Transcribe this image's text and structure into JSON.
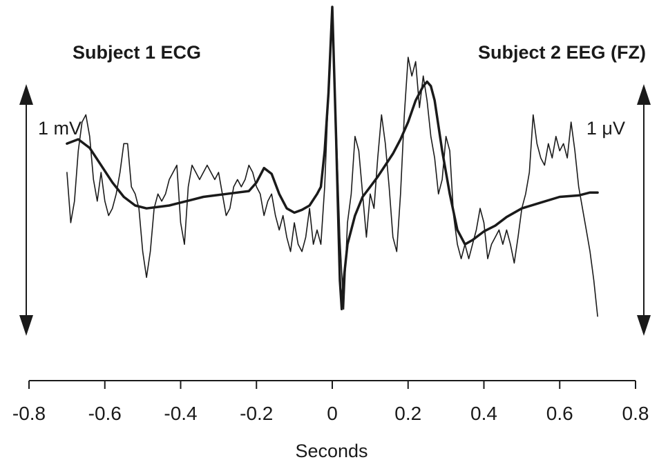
{
  "chart_data": {
    "type": "line",
    "title_left": "Subject 1 ECG",
    "title_right": "Subject 2 EEG (FZ)",
    "scale_left": "1 mV",
    "scale_right": "1 μV",
    "xlabel": "Seconds",
    "xlim": [
      -0.8,
      0.8
    ],
    "ylim": [
      -1.2,
      1.1
    ],
    "xticks": [
      -0.8,
      -0.6,
      -0.4,
      -0.2,
      0,
      0.2,
      0.4,
      0.6,
      0.8
    ],
    "xtick_labels": [
      "-0.8",
      "-0.6",
      "-0.4",
      "-0.2",
      "0",
      "0.2",
      "0.4",
      "0.6",
      "0.8"
    ],
    "grid": false,
    "series": [
      {
        "style": "thin",
        "x": [
          -0.7,
          -0.69,
          -0.68,
          -0.67,
          -0.66,
          -0.65,
          -0.64,
          -0.63,
          -0.62,
          -0.61,
          -0.6,
          -0.59,
          -0.58,
          -0.57,
          -0.56,
          -0.55,
          -0.54,
          -0.53,
          -0.52,
          -0.51,
          -0.5,
          -0.49,
          -0.48,
          -0.47,
          -0.46,
          -0.45,
          -0.44,
          -0.43,
          -0.42,
          -0.41,
          -0.4,
          -0.39,
          -0.38,
          -0.37,
          -0.36,
          -0.35,
          -0.34,
          -0.33,
          -0.32,
          -0.31,
          -0.3,
          -0.29,
          -0.28,
          -0.27,
          -0.26,
          -0.25,
          -0.24,
          -0.23,
          -0.22,
          -0.21,
          -0.2,
          -0.19,
          -0.18,
          -0.17,
          -0.16,
          -0.15,
          -0.14,
          -0.13,
          -0.12,
          -0.11,
          -0.1,
          -0.09,
          -0.08,
          -0.07,
          -0.06,
          -0.05,
          -0.04,
          -0.03,
          -0.02,
          -0.01,
          0,
          0.01,
          0.02,
          0.03,
          0.04,
          0.05,
          0.06,
          0.07,
          0.08,
          0.09,
          0.1,
          0.11,
          0.12,
          0.13,
          0.14,
          0.15,
          0.16,
          0.17,
          0.18,
          0.19,
          0.2,
          0.21,
          0.22,
          0.23,
          0.24,
          0.25,
          0.26,
          0.27,
          0.28,
          0.29,
          0.3,
          0.31,
          0.32,
          0.33,
          0.34,
          0.35,
          0.36,
          0.37,
          0.38,
          0.39,
          0.4,
          0.41,
          0.42,
          0.43,
          0.44,
          0.45,
          0.46,
          0.47,
          0.48,
          0.49,
          0.5,
          0.51,
          0.52,
          0.53,
          0.54,
          0.55,
          0.56,
          0.57,
          0.58,
          0.59,
          0.6,
          0.61,
          0.62,
          0.63,
          0.64,
          0.65,
          0.66,
          0.67,
          0.68,
          0.69,
          0.7
        ],
        "y": [
          -0.05,
          -0.4,
          -0.25,
          0.1,
          0.3,
          0.35,
          0.2,
          -0.1,
          -0.25,
          -0.05,
          -0.25,
          -0.35,
          -0.3,
          -0.2,
          -0.05,
          0.15,
          0.15,
          -0.15,
          -0.2,
          -0.3,
          -0.6,
          -0.78,
          -0.6,
          -0.3,
          -0.2,
          -0.25,
          -0.2,
          -0.1,
          -0.05,
          0.0,
          -0.4,
          -0.55,
          -0.15,
          0.0,
          -0.05,
          -0.1,
          -0.05,
          0.0,
          -0.05,
          -0.1,
          -0.05,
          -0.2,
          -0.35,
          -0.3,
          -0.15,
          -0.1,
          -0.15,
          -0.1,
          0.0,
          -0.05,
          -0.15,
          -0.2,
          -0.35,
          -0.25,
          -0.2,
          -0.35,
          -0.45,
          -0.35,
          -0.5,
          -0.6,
          -0.4,
          -0.55,
          -0.6,
          -0.5,
          -0.3,
          -0.55,
          -0.45,
          -0.55,
          -0.15,
          0.5,
          1.05,
          0.3,
          -0.5,
          -1.0,
          -0.4,
          -0.2,
          0.2,
          0.1,
          -0.2,
          -0.5,
          -0.2,
          -0.3,
          0.05,
          0.35,
          0.15,
          -0.15,
          -0.5,
          -0.6,
          -0.2,
          0.35,
          0.75,
          0.62,
          0.72,
          0.4,
          0.62,
          0.45,
          0.2,
          0.05,
          -0.2,
          -0.1,
          0.2,
          0.1,
          -0.35,
          -0.55,
          -0.65,
          -0.55,
          -0.65,
          -0.55,
          -0.45,
          -0.3,
          -0.4,
          -0.65,
          -0.55,
          -0.5,
          -0.45,
          -0.55,
          -0.45,
          -0.55,
          -0.68,
          -0.5,
          -0.3,
          -0.2,
          -0.05,
          0.35,
          0.15,
          0.05,
          0.0,
          0.15,
          0.05,
          0.2,
          0.1,
          0.15,
          0.05,
          0.3,
          0.1,
          -0.15,
          -0.3,
          -0.45,
          -0.6,
          -0.8,
          -1.05
        ]
      },
      {
        "style": "thick",
        "x": [
          -0.7,
          -0.67,
          -0.64,
          -0.61,
          -0.58,
          -0.55,
          -0.52,
          -0.49,
          -0.46,
          -0.43,
          -0.4,
          -0.37,
          -0.34,
          -0.31,
          -0.28,
          -0.25,
          -0.22,
          -0.2,
          -0.18,
          -0.16,
          -0.14,
          -0.12,
          -0.1,
          -0.08,
          -0.06,
          -0.04,
          -0.03,
          -0.02,
          -0.01,
          0,
          0.01,
          0.02,
          0.025,
          0.03,
          0.04,
          0.06,
          0.08,
          0.1,
          0.12,
          0.14,
          0.16,
          0.18,
          0.2,
          0.22,
          0.24,
          0.25,
          0.26,
          0.27,
          0.29,
          0.31,
          0.33,
          0.35,
          0.37,
          0.4,
          0.43,
          0.46,
          0.5,
          0.55,
          0.6,
          0.65,
          0.68,
          0.7
        ],
        "y": [
          0.15,
          0.18,
          0.12,
          0.0,
          -0.12,
          -0.22,
          -0.28,
          -0.3,
          -0.29,
          -0.28,
          -0.26,
          -0.24,
          -0.22,
          -0.21,
          -0.2,
          -0.19,
          -0.18,
          -0.12,
          -0.02,
          -0.06,
          -0.2,
          -0.3,
          -0.33,
          -0.31,
          -0.28,
          -0.2,
          -0.15,
          0.1,
          0.5,
          1.1,
          0.2,
          -0.8,
          -1.0,
          -0.8,
          -0.55,
          -0.35,
          -0.22,
          -0.15,
          -0.08,
          0.0,
          0.08,
          0.18,
          0.3,
          0.45,
          0.55,
          0.58,
          0.55,
          0.45,
          0.1,
          -0.2,
          -0.45,
          -0.55,
          -0.52,
          -0.46,
          -0.42,
          -0.36,
          -0.3,
          -0.26,
          -0.22,
          -0.21,
          -0.19,
          -0.19
        ]
      }
    ]
  }
}
